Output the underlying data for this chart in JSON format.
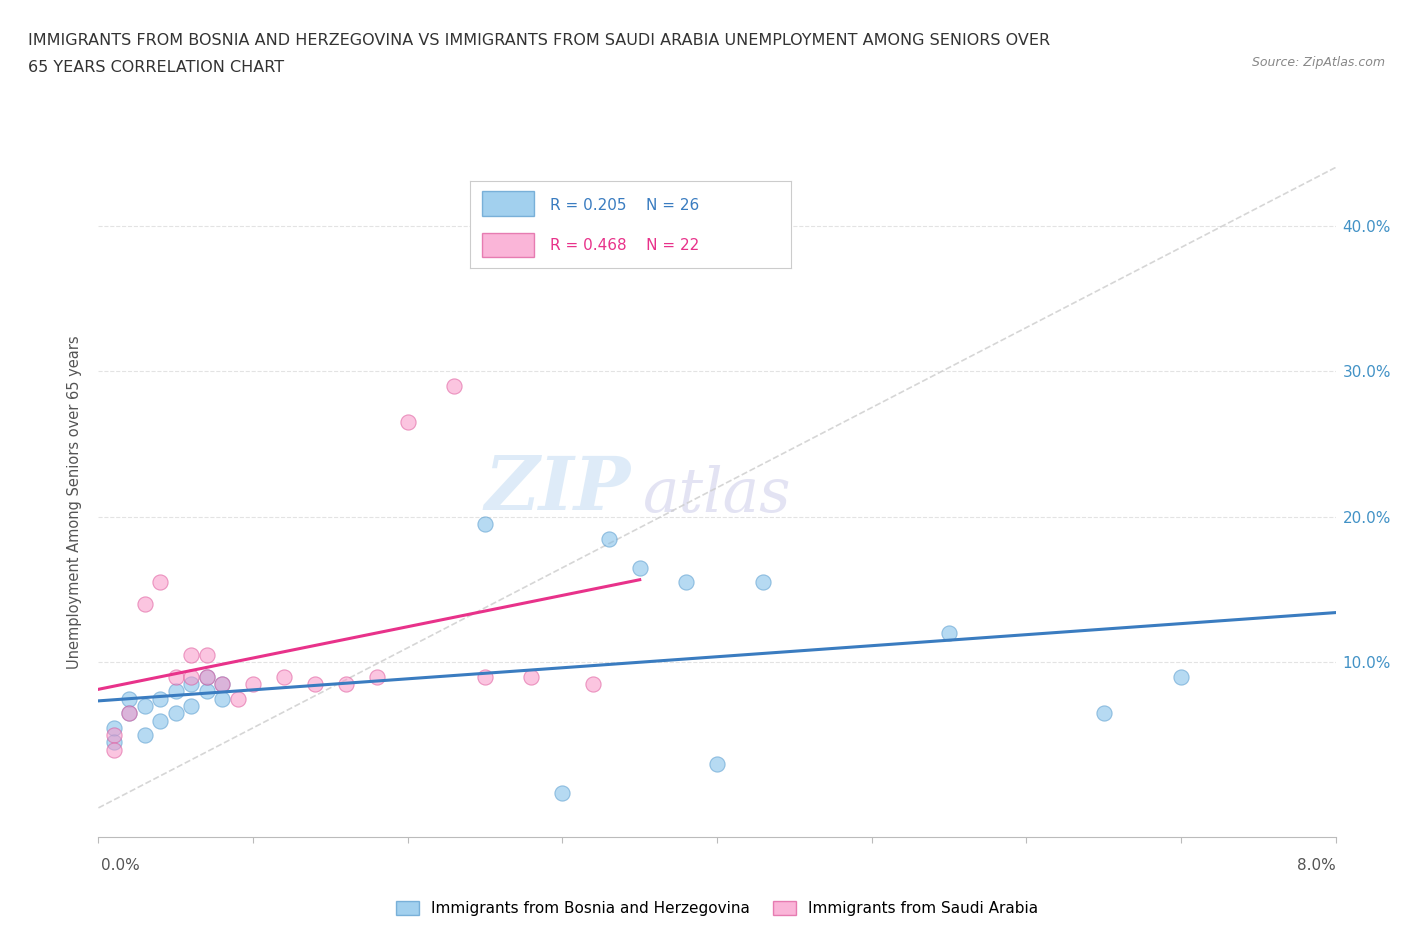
{
  "title_line1": "IMMIGRANTS FROM BOSNIA AND HERZEGOVINA VS IMMIGRANTS FROM SAUDI ARABIA UNEMPLOYMENT AMONG SENIORS OVER",
  "title_line2": "65 YEARS CORRELATION CHART",
  "source": "Source: ZipAtlas.com",
  "ylabel": "Unemployment Among Seniors over 65 years",
  "legend_label1": "Immigrants from Bosnia and Herzegovina",
  "legend_label2": "Immigrants from Saudi Arabia",
  "legend_r1": "R = 0.205",
  "legend_n1": "N = 26",
  "legend_r2": "R = 0.468",
  "legend_n2": "N = 22",
  "color1": "#7bbce8",
  "color2": "#f896c8",
  "trendline1_color": "#3a7cc0",
  "trendline2_color": "#e8328a",
  "watermark_zip": "ZIP",
  "watermark_atlas": "atlas",
  "xlim": [
    0.0,
    0.08
  ],
  "ylim": [
    -0.02,
    0.44
  ],
  "xticks": [
    0.0,
    0.01,
    0.02,
    0.03,
    0.04,
    0.05,
    0.06,
    0.07,
    0.08
  ],
  "ytick_labels_right": [
    "10.0%",
    "20.0%",
    "30.0%",
    "40.0%"
  ],
  "ytick_vals_right": [
    0.1,
    0.2,
    0.3,
    0.4
  ],
  "bosnia_x": [
    0.001,
    0.001,
    0.002,
    0.002,
    0.003,
    0.003,
    0.004,
    0.004,
    0.005,
    0.005,
    0.006,
    0.006,
    0.007,
    0.007,
    0.008,
    0.008,
    0.025,
    0.03,
    0.033,
    0.035,
    0.038,
    0.04,
    0.043,
    0.055,
    0.065,
    0.07
  ],
  "bosnia_y": [
    0.055,
    0.045,
    0.065,
    0.075,
    0.07,
    0.05,
    0.075,
    0.06,
    0.08,
    0.065,
    0.07,
    0.085,
    0.08,
    0.09,
    0.075,
    0.085,
    0.195,
    0.01,
    0.185,
    0.165,
    0.155,
    0.03,
    0.155,
    0.12,
    0.065,
    0.09
  ],
  "saudi_x": [
    0.001,
    0.001,
    0.002,
    0.003,
    0.004,
    0.005,
    0.006,
    0.006,
    0.007,
    0.007,
    0.008,
    0.009,
    0.01,
    0.012,
    0.014,
    0.016,
    0.018,
    0.02,
    0.023,
    0.025,
    0.028,
    0.032
  ],
  "saudi_y": [
    0.05,
    0.04,
    0.065,
    0.14,
    0.155,
    0.09,
    0.09,
    0.105,
    0.09,
    0.105,
    0.085,
    0.075,
    0.085,
    0.09,
    0.085,
    0.085,
    0.09,
    0.265,
    0.29,
    0.09,
    0.09,
    0.085
  ],
  "background_color": "#ffffff",
  "grid_color": "#e0e0e0",
  "diag_line_color": "#cccccc"
}
